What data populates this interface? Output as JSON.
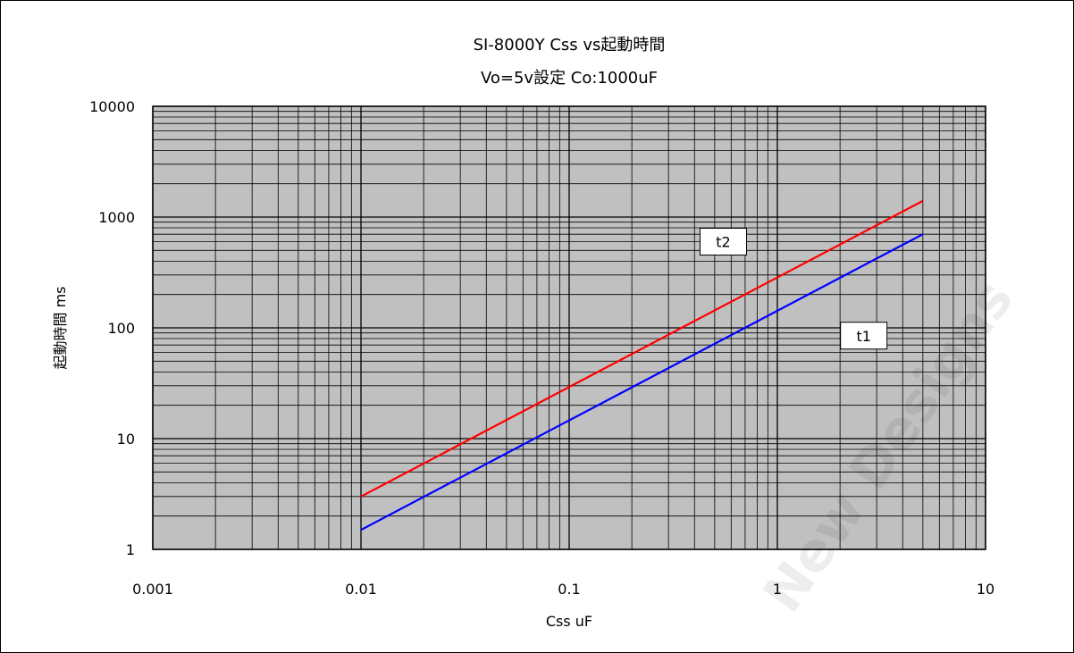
{
  "chart_data": {
    "type": "line",
    "title": "SI-8000Y Css vs起動時間",
    "subtitle": "Vo=5v設定 Co:1000uF",
    "xlabel": "Css uF",
    "ylabel": "起動時間 ms",
    "x_scale": "log",
    "y_scale": "log",
    "xlim": [
      0.001,
      10
    ],
    "ylim": [
      1,
      10000
    ],
    "x_ticks": [
      "0.001",
      "0.01",
      "0.1",
      "1",
      "10"
    ],
    "y_ticks": [
      "1",
      "10",
      "100",
      "1000",
      "10000"
    ],
    "grid": true,
    "legend": "none",
    "series": [
      {
        "name": "t2",
        "color": "#ff0000",
        "x": [
          0.01,
          5
        ],
        "y": [
          3,
          1400
        ]
      },
      {
        "name": "t1",
        "color": "#0000ff",
        "x": [
          0.01,
          5
        ],
        "y": [
          1.5,
          700
        ]
      }
    ]
  },
  "watermark": "New Designs"
}
